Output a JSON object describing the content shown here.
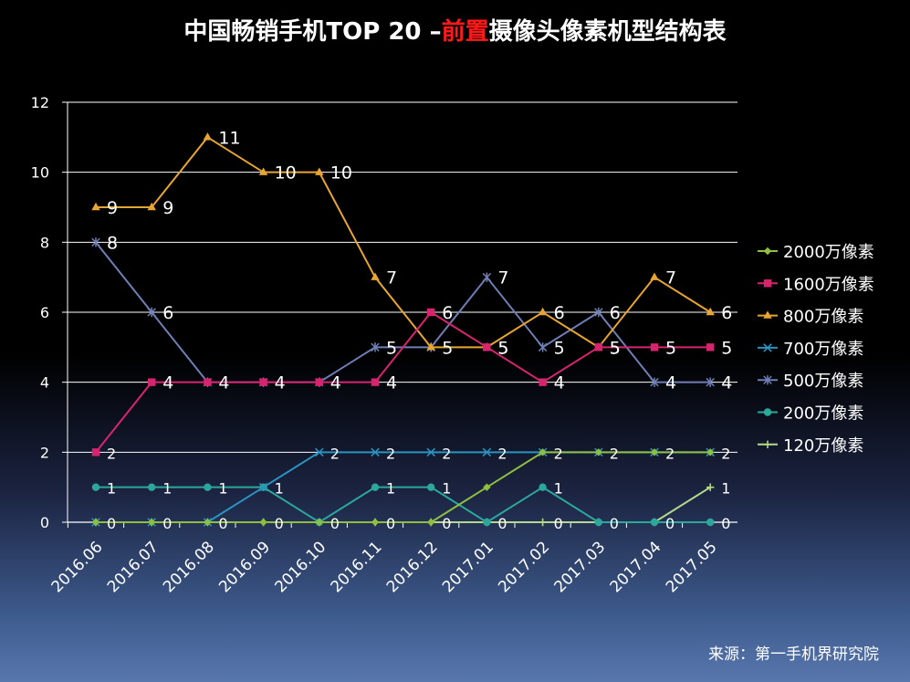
{
  "title": {
    "prefix": "中国畅销手机TOP 20 –",
    "highlight": "前置",
    "suffix": "摄像头像素机型结构表"
  },
  "source": "来源：第一手机界研究院",
  "colors": {
    "highlight": "#ff1a1a"
  },
  "chart_data": {
    "type": "line",
    "categories": [
      "2016.06",
      "2016.07",
      "2016.08",
      "2016.09",
      "2016.10",
      "2016.11",
      "2016.12",
      "2017.01",
      "2017.02",
      "2017.03",
      "2017.04",
      "2017.05"
    ],
    "ylim": [
      0,
      12
    ],
    "yticks": [
      0,
      2,
      4,
      6,
      8,
      10,
      12
    ],
    "grid": true,
    "legend_position": "right",
    "series": [
      {
        "name": "2000万像素",
        "color": "#8fbf3f",
        "marker": "diamond",
        "values": [
          0,
          0,
          0,
          0,
          0,
          0,
          0,
          1,
          2,
          2,
          2,
          2
        ]
      },
      {
        "name": "1600万像素",
        "color": "#d6246e",
        "marker": "square",
        "values": [
          2,
          4,
          4,
          4,
          4,
          4,
          6,
          5,
          4,
          5,
          5,
          5
        ]
      },
      {
        "name": "800万像素",
        "color": "#e8a530",
        "marker": "triangle",
        "values": [
          9,
          9,
          11,
          10,
          10,
          7,
          5,
          5,
          6,
          5,
          7,
          6
        ]
      },
      {
        "name": "700万像素",
        "color": "#2a93c0",
        "marker": "x",
        "values": [
          0,
          0,
          0,
          1,
          2,
          2,
          2,
          2,
          2,
          2,
          2,
          2
        ]
      },
      {
        "name": "500万像素",
        "color": "#6f7fb5",
        "marker": "star",
        "values": [
          8,
          6,
          4,
          4,
          4,
          5,
          5,
          7,
          5,
          6,
          4,
          4
        ]
      },
      {
        "name": "200万像素",
        "color": "#2ba89a",
        "marker": "circle",
        "values": [
          1,
          1,
          1,
          1,
          0,
          1,
          1,
          0,
          1,
          0,
          0,
          0
        ]
      },
      {
        "name": "120万像素",
        "color": "#b5d98c",
        "marker": "plus",
        "values": [
          0,
          0,
          0,
          0,
          0,
          0,
          0,
          0,
          0,
          0,
          0,
          1
        ]
      }
    ],
    "data_labels": [
      {
        "x": "2016.06",
        "value": 9
      },
      {
        "x": "2016.07",
        "value": 9
      },
      {
        "x": "2016.08",
        "value": 11
      },
      {
        "x": "2016.09",
        "value": 10
      },
      {
        "x": "2016.10",
        "value": 10
      },
      {
        "x": "2016.11",
        "value": 7
      },
      {
        "x": "2016.12",
        "value": 5
      },
      {
        "x": "2017.01",
        "value": 5
      },
      {
        "x": "2017.02",
        "value": 6
      },
      {
        "x": "2017.03",
        "value": 5
      },
      {
        "x": "2017.04",
        "value": 7
      },
      {
        "x": "2017.05",
        "value": 6
      },
      {
        "x": "2016.06",
        "value": 8
      },
      {
        "x": "2016.07",
        "value": 6
      },
      {
        "x": "2016.08",
        "value": 4
      },
      {
        "x": "2016.09",
        "value": 4
      },
      {
        "x": "2016.10",
        "value": 4
      },
      {
        "x": "2016.11",
        "value": 5
      },
      {
        "x": "2016.12",
        "value": 6
      },
      {
        "x": "2017.01",
        "value": 7
      },
      {
        "x": "2017.02",
        "value": 5
      },
      {
        "x": "2017.03",
        "value": 6
      },
      {
        "x": "2017.04",
        "value": 4
      },
      {
        "x": "2017.05",
        "value": 4
      },
      {
        "x": "2016.06",
        "value": 2
      },
      {
        "x": "2016.07",
        "value": 4
      },
      {
        "x": "2016.11",
        "value": 4
      },
      {
        "x": "2017.01",
        "value": 5
      },
      {
        "x": "2017.02",
        "value": 4
      },
      {
        "x": "2017.03",
        "value": 5
      },
      {
        "x": "2017.04",
        "value": 5
      },
      {
        "x": "2017.05",
        "value": 5
      },
      {
        "x": "2016.10",
        "value": 2
      },
      {
        "x": "2016.11",
        "value": 2
      },
      {
        "x": "2016.12",
        "value": 2
      },
      {
        "x": "2017.01",
        "value": 2
      },
      {
        "x": "2017.02",
        "value": 2
      },
      {
        "x": "2017.03",
        "value": 2
      },
      {
        "x": "2017.04",
        "value": 2
      },
      {
        "x": "2017.05",
        "value": 2
      },
      {
        "x": "2016.06",
        "value": 1
      },
      {
        "x": "2016.07",
        "value": 1
      },
      {
        "x": "2016.08",
        "value": 1
      },
      {
        "x": "2016.09",
        "value": 1
      },
      {
        "x": "2016.11",
        "value": 1
      },
      {
        "x": "2016.12",
        "value": 1
      },
      {
        "x": "2017.02",
        "value": 1
      },
      {
        "x": "2017.05",
        "value": 1
      },
      {
        "x": "2016.06",
        "value": 0
      },
      {
        "x": "2016.07",
        "value": 0
      },
      {
        "x": "2016.08",
        "value": 0
      },
      {
        "x": "2016.09",
        "value": 0
      },
      {
        "x": "2016.10",
        "value": 0
      },
      {
        "x": "2016.11",
        "value": 0
      },
      {
        "x": "2016.12",
        "value": 0
      },
      {
        "x": "2017.01",
        "value": 0
      },
      {
        "x": "2017.02",
        "value": 0
      },
      {
        "x": "2017.03",
        "value": 0
      },
      {
        "x": "2017.04",
        "value": 0
      },
      {
        "x": "2017.05",
        "value": 0
      }
    ]
  }
}
